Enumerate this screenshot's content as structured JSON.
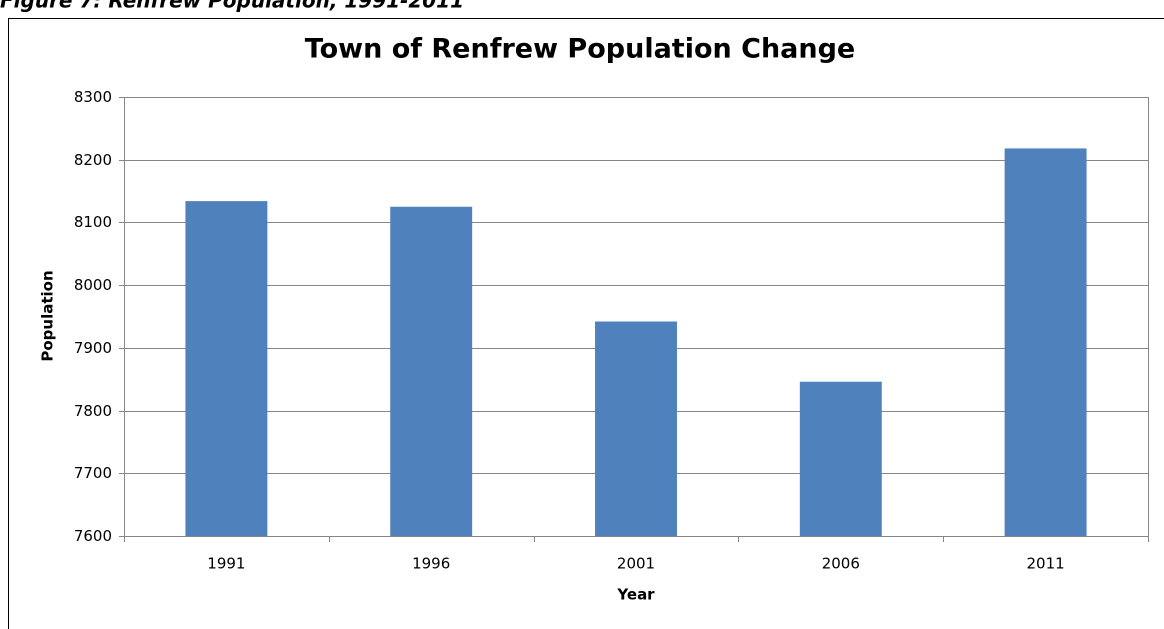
{
  "caption": "Figure 7: Renfrew Population, 1991-2011",
  "chart_data": {
    "type": "bar",
    "title": "Town of Renfrew Population Change",
    "x_label": "Year",
    "y_label": "Population",
    "categories": [
      "1991",
      "1996",
      "2001",
      "2006",
      "2011"
    ],
    "values": [
      8134,
      8125,
      7942,
      7846,
      8218
    ],
    "color": "#4f81bd",
    "ylim": [
      7600,
      8300
    ],
    "yticks": [
      7600,
      7700,
      7800,
      7900,
      8000,
      8100,
      8200,
      8300
    ],
    "grid": true
  }
}
